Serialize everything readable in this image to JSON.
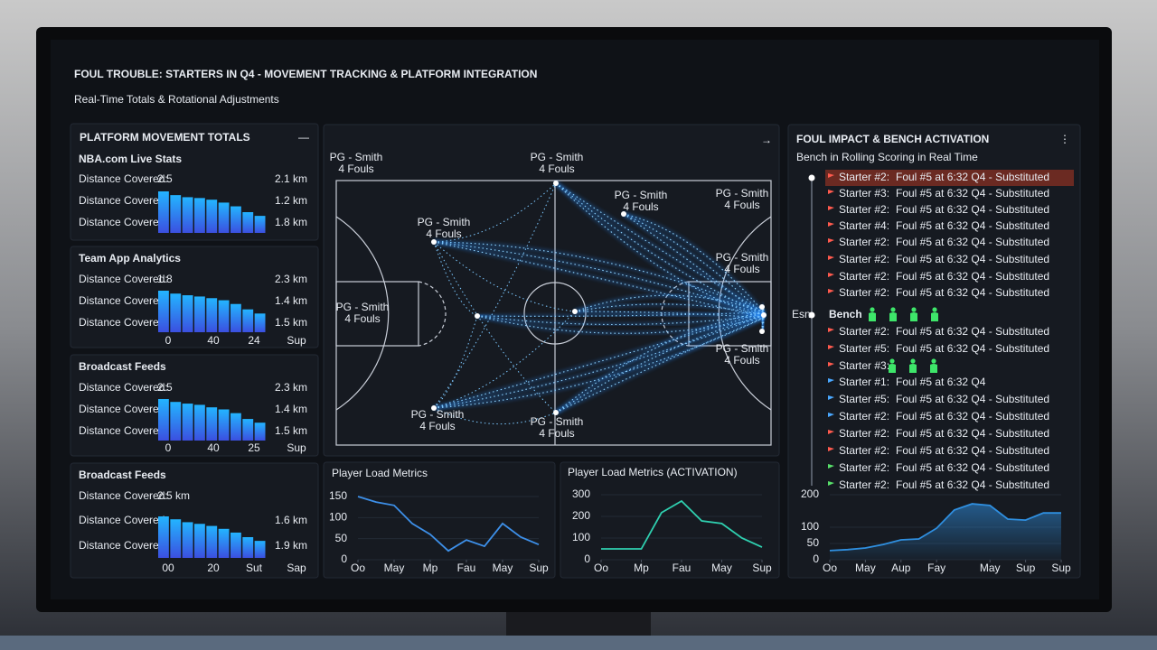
{
  "header": {
    "title": "FOUL TROUBLE: STARTERS IN Q4 - MOVEMENT TRACKING & PLATFORM INTEGRATION",
    "subtitle": "Real-Time Totals & Rotational Adjustments"
  },
  "platforms": {
    "title": "PLATFORM MOVEMENT TOTALS",
    "menu": "—",
    "panels": [
      {
        "name": "NBA.com Live Stats",
        "rows": [
          {
            "label": "Distance Covered:",
            "left": "2.5",
            "right": "2.1 km"
          },
          {
            "label": "Distance Covered:",
            "right": "1.2 km"
          },
          {
            "label": "Distance Covered:",
            "right": "1.8 km"
          }
        ],
        "bars": [
          100,
          91,
          86,
          84,
          80,
          73,
          64,
          50,
          41
        ],
        "ticks": []
      },
      {
        "name": "Team App Analytics",
        "rows": [
          {
            "label": "Distance Covered:",
            "left": "1.8",
            "right": "2.3 km"
          },
          {
            "label": "Distance Covered:",
            "right": "1.4 km"
          },
          {
            "label": "Distance Covered:",
            "right": "1.5 km"
          }
        ],
        "bars": [
          100,
          93,
          89,
          86,
          82,
          77,
          68,
          55,
          45
        ],
        "ticks": [
          "0",
          "40",
          "24",
          "Sup"
        ]
      },
      {
        "name": "Broadcast Feeds",
        "rows": [
          {
            "label": "Distance Covered:",
            "left": "2.5",
            "right": "2.3 km"
          },
          {
            "label": "Distance Covered:",
            "right": "1.4 km"
          },
          {
            "label": "Distance Covered:",
            "right": "1.5 km"
          }
        ],
        "bars": [
          100,
          93,
          89,
          86,
          80,
          75,
          66,
          52,
          43
        ],
        "ticks": [
          "0",
          "40",
          "25",
          "Sup"
        ]
      },
      {
        "name": "Broadcast Feeds",
        "rows": [
          {
            "label": "Distance Covered:",
            "left": "2.5 km"
          },
          {
            "label": "Distance Covered:",
            "right": "1.6 km"
          },
          {
            "label": "Distance Covered:",
            "right": "1.9 km"
          }
        ],
        "bars": [
          100,
          93,
          86,
          82,
          77,
          70,
          61,
          50,
          41
        ],
        "ticks": [
          "00",
          "20",
          "Sut",
          "Sap"
        ]
      }
    ]
  },
  "court": {
    "arrow": "→",
    "players": [
      {
        "name": "PG - Smith",
        "fouls": "4 Fouls"
      },
      {
        "name": "PG - Smith",
        "fouls": "4 Fouls"
      },
      {
        "name": "PG - Smith",
        "fouls": "4 Fouls"
      },
      {
        "name": "PG - Smith",
        "fouls": "4 Fouls"
      },
      {
        "name": "PG - Smith",
        "fouls": "4 Fouls"
      },
      {
        "name": "PG - Smith",
        "fouls": "4 Fouls"
      },
      {
        "name": "PG - Smith",
        "fouls": "4 Fouls"
      },
      {
        "name": "PG - Smith",
        "fouls": "4 Fouls"
      },
      {
        "name": "PG - Smith",
        "fouls": "4 Fouls"
      },
      {
        "name": "PG - Smith",
        "fouls": "4 Fouls"
      }
    ]
  },
  "load": {
    "type": "line",
    "title": "Player Load Metrics",
    "color": "#3d8fe8",
    "x": [
      0,
      1,
      2,
      3,
      4,
      5,
      6,
      7,
      8,
      9,
      10
    ],
    "values": [
      150,
      137,
      129,
      86,
      60,
      21,
      47,
      32,
      86,
      54,
      36
    ],
    "xlim": [
      0,
      10
    ],
    "xticks": [
      {
        "value": 0,
        "label": "Oo"
      },
      {
        "value": 2,
        "label": "May"
      },
      {
        "value": 4,
        "label": "Mp"
      },
      {
        "value": 6,
        "label": "Fau"
      },
      {
        "value": 8,
        "label": "May"
      },
      {
        "value": 10,
        "label": "Sup"
      }
    ],
    "ylim": [
      0,
      150
    ],
    "yticks": [
      0,
      50,
      100,
      150
    ]
  },
  "activation": {
    "type": "line",
    "title": "Player Load Metrics (ACTIVATION)",
    "color": "#2fd0b0",
    "x": [
      0,
      1,
      2,
      3,
      4,
      5,
      6,
      7,
      8
    ],
    "values": [
      50,
      50,
      50,
      217,
      271,
      179,
      167,
      100,
      58
    ],
    "xlim": [
      0,
      8
    ],
    "xticks": [
      {
        "value": 0,
        "label": "Oo"
      },
      {
        "value": 2,
        "label": "Mp"
      },
      {
        "value": 4,
        "label": "Fau"
      },
      {
        "value": 6,
        "label": "May"
      },
      {
        "value": 8,
        "label": "Sup"
      }
    ],
    "ylim": [
      0,
      300
    ],
    "yticks": [
      0,
      100,
      200,
      300
    ]
  },
  "impact": {
    "title": "FOUL IMPACT & BENCH ACTIVATION",
    "menu": "⋮",
    "subtitle": "Bench in Rolling Scoring in Real Time",
    "side_label": "Esn",
    "events": [
      {
        "who": "Starter #2:",
        "what": "Foul #5 at 6:32 Q4 - Substituted",
        "tone": "red",
        "highlight": true
      },
      {
        "who": "Starter #3:",
        "what": "Foul #5 at 6:32 Q4 - Substituted",
        "tone": "red"
      },
      {
        "who": "Starter #2:",
        "what": "Foul #5 at 6:32 Q4 - Substituted",
        "tone": "red"
      },
      {
        "who": "Starter #4:",
        "what": "Foul #5 at 6:32 Q4 - Substituted",
        "tone": "red"
      },
      {
        "who": "Starter #2:",
        "what": "Foul #5 at 6:32 Q4 - Substituted",
        "tone": "red"
      },
      {
        "who": "Starter #2:",
        "what": "Foul #5 at 6:32 Q4 - Substituted",
        "tone": "red"
      },
      {
        "who": "Starter #2:",
        "what": "Foul #5 at 6:32 Q4 - Substituted",
        "tone": "red"
      },
      {
        "who": "Starter #2:",
        "what": "Foul #5 at 6:32 Q4 - Substituted",
        "tone": "red"
      },
      {
        "who": "Bench",
        "icons": 4,
        "tone": "bench"
      },
      {
        "who": "Starter #2:",
        "what": "Foul #5 at 6:32 Q4 - Substituted",
        "tone": "red"
      },
      {
        "who": "Starter #5:",
        "what": "Foul #5 at 6:32 Q4 - Substituted",
        "tone": "red"
      },
      {
        "who": "Starter #3:",
        "icons": 3,
        "tone": "red"
      },
      {
        "who": "Starter #1:",
        "what": "Foul #5 at 6:32 Q4",
        "tone": "blue"
      },
      {
        "who": "Starter #5:",
        "what": "Foul #5 at 6:32 Q4 - Substituted",
        "tone": "blue"
      },
      {
        "who": "Starter #2:",
        "what": "Foul #5 at 6:32 Q4 - Substituted",
        "tone": "blue"
      },
      {
        "who": "Starter #2:",
        "what": "Foul #5 at 6:32 Q4 - Substituted",
        "tone": "red"
      },
      {
        "who": "Starter #2:",
        "what": "Foul #5 at 6:32 Q4 - Substituted",
        "tone": "red"
      },
      {
        "who": "Starter #2:",
        "what": "Foul #5 at 6:32 Q4 - Substituted",
        "tone": "green"
      },
      {
        "who": "Starter #2:",
        "what": "Foul #5 at 6:32 Q4 - Substituted",
        "tone": "green"
      }
    ],
    "chart": {
      "type": "area",
      "color": "#2f8fe0",
      "x": [
        0,
        1,
        2,
        3,
        4,
        5,
        6,
        7,
        8,
        9,
        10,
        11,
        12,
        13
      ],
      "values": [
        28,
        31,
        36,
        47,
        61,
        64,
        97,
        153,
        172,
        167,
        125,
        122,
        144,
        144
      ],
      "xlim": [
        0,
        13
      ],
      "xticks": [
        {
          "value": 0,
          "label": "Oo"
        },
        {
          "value": 2,
          "label": "May"
        },
        {
          "value": 4,
          "label": "Aup"
        },
        {
          "value": 6,
          "label": "Fay"
        },
        {
          "value": 9,
          "label": "May"
        },
        {
          "value": 11,
          "label": "Sup"
        },
        {
          "value": 13,
          "label": "Sup"
        }
      ],
      "ylim": [
        0,
        200
      ],
      "yticks": [
        0,
        50,
        100,
        200
      ]
    }
  }
}
